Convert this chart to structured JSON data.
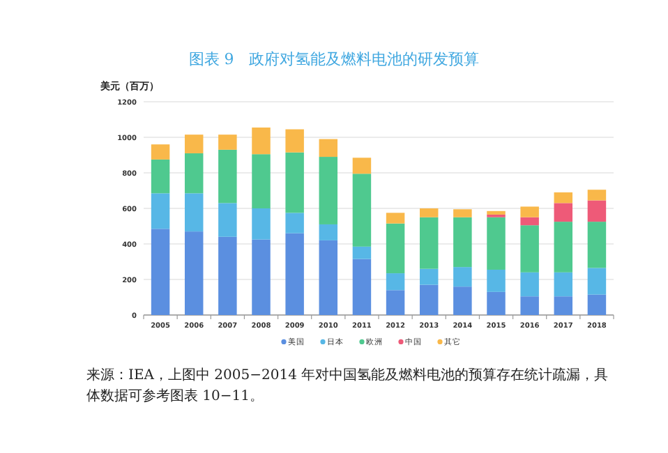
{
  "chart_data": {
    "type": "bar",
    "stacked": true,
    "title": "图表 9　政府对氢能及燃料电池的研发预算",
    "ylabel": "美元（百万）",
    "categories": [
      "2005",
      "2006",
      "2007",
      "2008",
      "2009",
      "2010",
      "2011",
      "2012",
      "2013",
      "2014",
      "2015",
      "2016",
      "2017",
      "2018"
    ],
    "series": [
      {
        "name": "美国",
        "color": "#5b8fe0",
        "values": [
          485,
          470,
          440,
          425,
          460,
          420,
          315,
          140,
          170,
          160,
          130,
          105,
          105,
          115
        ]
      },
      {
        "name": "日本",
        "color": "#57b7e6",
        "values": [
          200,
          215,
          190,
          175,
          115,
          90,
          70,
          95,
          90,
          110,
          125,
          135,
          135,
          150
        ]
      },
      {
        "name": "欧洲",
        "color": "#4fc98f",
        "values": [
          190,
          225,
          300,
          305,
          340,
          380,
          410,
          280,
          290,
          280,
          295,
          265,
          285,
          260
        ]
      },
      {
        "name": "中国",
        "color": "#ee5a78",
        "values": [
          null,
          null,
          null,
          null,
          null,
          null,
          null,
          null,
          null,
          null,
          15,
          45,
          105,
          120
        ]
      },
      {
        "name": "其它",
        "color": "#f9b84a",
        "values": [
          85,
          105,
          85,
          150,
          130,
          100,
          90,
          60,
          50,
          45,
          20,
          60,
          60,
          60
        ]
      }
    ],
    "ylim": [
      0,
      1200
    ],
    "yticks": [
      0,
      200,
      400,
      600,
      800,
      1000,
      1200
    ],
    "grid": "y",
    "legend": "bottom",
    "annotations": [
      "来源：IEA，上图中 2005−2014 年对中国氢能及燃料电池的预算存在统计疏漏，具体数据可参考图表 10−11。"
    ]
  }
}
